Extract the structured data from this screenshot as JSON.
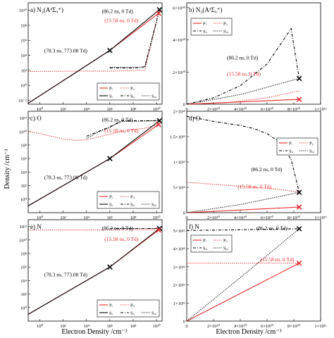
{
  "figure": {
    "ylabel": "Density /cm⁻³",
    "xlabel": "Electron Density /cm⁻³",
    "colors": {
      "red": "#e8292b",
      "black": "#000000"
    }
  },
  "chart_data": [
    {
      "panel": "a) N₂(A³Σᵤ⁺)",
      "type": "line",
      "xscale": "log",
      "yscale": "log",
      "xlim": [
        0.1,
        30000000000.0
      ],
      "ylim": [
        0.003,
        100000000000.0
      ],
      "xticks": [
        "10⁰",
        "10²",
        "10⁴",
        "10⁶",
        "10⁸",
        "10¹⁰"
      ],
      "yticks": [
        "10⁻²",
        "10⁰",
        "10²",
        "10⁴",
        "10⁶",
        "10⁸",
        "10¹⁰"
      ],
      "series": [
        {
          "name": "Pᵢ",
          "color": "#e8292b",
          "dash": "solid",
          "x": [
            0.1,
            1000000.0,
            15000000000.0
          ],
          "y": [
            0.004,
            45000.0,
            4000000000.0
          ]
        },
        {
          "name": "Pᵢᵢ",
          "color": "#e8292b",
          "dash": "dotted",
          "x": [
            0.1,
            10000.0,
            1000000.0,
            1000000000.0,
            15000000000.0
          ],
          "y": [
            70,
            80,
            80,
            100,
            4000000000.0
          ]
        },
        {
          "name": "Sᵢ",
          "color": "#000000",
          "dash": "solid",
          "x": [
            0.1,
            1000000.0,
            18000000000.0
          ],
          "y": [
            0.004,
            45000.0,
            12000000000.0
          ]
        },
        {
          "name": "Sᵢᵢ",
          "color": "#000000",
          "dash": "dashdot",
          "x": [
            1000000.0,
            100000000.0,
            1000000000.0,
            18000000000.0
          ],
          "y": [
            200,
            200,
            300,
            12000000000.0
          ]
        },
        {
          "name": "Sᵢᵢᵢ",
          "color": "#000000",
          "dash": "dotted",
          "x": [
            1000000.0,
            1000000000.0,
            18000000000.0
          ],
          "y": [
            250,
            250,
            12000000000.0
          ]
        }
      ],
      "markers": [
        {
          "x": 1000000.0,
          "y": 45000.0,
          "color": "#000000"
        },
        {
          "x": 18000000000.0,
          "y": 12000000000.0,
          "color": "#000000"
        },
        {
          "x": 15000000000.0,
          "y": 4000000000.0,
          "color": "#e8292b"
        }
      ],
      "annotations": [
        {
          "text": "(86.2 ns, 0 Td)",
          "color": "#000000"
        },
        {
          "text": "(15.58 ns, 0 Td)",
          "color": "#e8292b"
        },
        {
          "text": "(78.3 ns, 773.08 Td)",
          "color": "#000000"
        }
      ],
      "legend": "bottom-right"
    },
    {
      "panel": "b) N₂(A³Σᵤ⁺)",
      "type": "line",
      "xscale": "linear",
      "yscale": "linear",
      "xlim": [
        0,
        100000000000.0
      ],
      "ylim": [
        0,
        63000000000.0
      ],
      "xticks": [
        "0",
        "2×10¹⁰",
        "4×10¹⁰",
        "6×10¹⁰",
        "8×10¹⁰",
        "1×10¹¹"
      ],
      "yticks": [
        "0",
        "2×10¹⁰",
        "4×10¹⁰",
        "6×10¹⁰"
      ],
      "series": [
        {
          "name": "Pᵢ",
          "color": "#e8292b",
          "dash": "solid",
          "x": [
            0,
            84000000000.0
          ],
          "y": [
            0,
            3000000000.0
          ]
        },
        {
          "name": "Pᵢᵢ",
          "color": "#e8292b",
          "dash": "dotted",
          "x": [
            0,
            30000000000.0,
            60000000000.0,
            82000000000.0,
            84000000000.0
          ],
          "y": [
            0,
            1000000000.0,
            4000000000.0,
            8000000000.0,
            8000000000.0
          ]
        },
        {
          "name": "Sᵢᵢ",
          "color": "#000000",
          "dash": "dashdot",
          "x": [
            0,
            20000000000.0,
            40000000000.0,
            60000000000.0,
            78000000000.0,
            84000000000.0
          ],
          "y": [
            0,
            4000000000.0,
            11500000000.0,
            25000000000.0,
            47000000000.0,
            16000000000.0
          ]
        },
        {
          "name": "Sᵢᵢᵢ",
          "color": "#000000",
          "dash": "dotted",
          "x": [
            0,
            40000000000.0,
            84000000000.0
          ],
          "y": [
            0,
            6000000000.0,
            16000000000.0
          ]
        }
      ],
      "markers": [
        {
          "x": 84000000000.0,
          "y": 16000000000.0,
          "color": "#000000"
        },
        {
          "x": 84000000000.0,
          "y": 3000000000.0,
          "color": "#e8292b"
        }
      ],
      "annotations": [
        {
          "text": "(86.2 ns, 0 Td)",
          "color": "#000000"
        },
        {
          "text": "(15.58 ns, 0 Td)",
          "color": "#e8292b"
        }
      ],
      "legend": "top-left"
    },
    {
      "panel": "c) O",
      "type": "line",
      "xscale": "log",
      "yscale": "log",
      "xlim": [
        0.1,
        30000000000.0
      ],
      "ylim": [
        0.01,
        10000000000000.0
      ],
      "xticks": [
        "10⁰",
        "10²",
        "10⁴",
        "10⁶",
        "10⁸",
        "10¹⁰"
      ],
      "yticks": [
        "10⁰",
        "10²",
        "10⁴",
        "10⁶",
        "10⁸",
        "10¹⁰",
        "10¹²"
      ],
      "series": [
        {
          "name": "Pᵢ",
          "color": "#e8292b",
          "dash": "solid",
          "x": [
            0.1,
            1000000.0,
            15000000000.0
          ],
          "y": [
            0.1,
            1000000.0,
            110000000000.0
          ]
        },
        {
          "name": "Pᵢᵢ",
          "color": "#e8292b",
          "dash": "dotted",
          "x": [
            0.1,
            1,
            10,
            100,
            1000.0,
            10000.0,
            100000.0,
            1000000.0,
            10000000.0,
            100000000.0,
            1000000000.0,
            15000000000.0
          ],
          "y": [
            10000000000.0,
            5000000000.0,
            2000000000.0,
            800000000.0,
            500000000.0,
            600000000.0,
            1500000000.0,
            4000000000.0,
            10000000000.0,
            20000000000.0,
            30000000000.0,
            110000000000.0
          ]
        },
        {
          "name": "Sᵢ",
          "color": "#000000",
          "dash": "solid",
          "x": [
            0.1,
            1000000.0,
            18000000000.0
          ],
          "y": [
            0.1,
            1000000.0,
            400000000000.0
          ]
        },
        {
          "name": "Sᵢᵢ",
          "color": "#000000",
          "dash": "dashdot",
          "x": [
            10000.0,
            100000.0,
            1000000.0,
            10000000.0,
            18000000000.0
          ],
          "y": [
            2000000000.0,
            10000000000.0,
            50000000000.0,
            400000000000.0,
            400000000000.0
          ]
        },
        {
          "name": "Sᵢᵢᵢ",
          "color": "#000000",
          "dash": "dotted",
          "x": [
            10000.0,
            100000.0,
            1000000.0,
            10000000.0,
            18000000000.0
          ],
          "y": [
            1000000000.0,
            8000000000.0,
            40000000000.0,
            300000000000.0,
            400000000000.0
          ]
        }
      ],
      "markers": [
        {
          "x": 1000000.0,
          "y": 1000000.0,
          "color": "#000000"
        },
        {
          "x": 18000000000.0,
          "y": 400000000000.0,
          "color": "#000000"
        },
        {
          "x": 15000000000.0,
          "y": 110000000000.0,
          "color": "#e8292b"
        }
      ],
      "annotations": [
        {
          "text": "(86.2 ns, 0 Td)",
          "color": "#000000"
        },
        {
          "text": "(15.58 ns, 0 Td)",
          "color": "#e8292b"
        },
        {
          "text": "(78.3 ns, 773.08 Td)",
          "color": "#000000"
        }
      ],
      "legend": "bottom-right"
    },
    {
      "panel": "d) O",
      "type": "line",
      "xscale": "linear",
      "yscale": "linear",
      "xlim": [
        0,
        100000000000.0
      ],
      "ylim": [
        0,
        2000000000000.0
      ],
      "xticks": [
        "0",
        "2×10¹⁰",
        "4×10¹⁰",
        "6×10¹⁰",
        "8×10¹⁰",
        "1×10¹¹"
      ],
      "yticks": [
        "0",
        "5×10¹¹",
        "1×10¹²",
        "1.5×10¹²",
        "2×10¹²"
      ],
      "series": [
        {
          "name": "Pᵢ",
          "color": "#e8292b",
          "dash": "solid",
          "x": [
            0,
            84000000000.0
          ],
          "y": [
            0,
            110000000000.0
          ]
        },
        {
          "name": "Pᵢᵢ",
          "color": "#e8292b",
          "dash": "dotted",
          "x": [
            0,
            20000000000.0,
            40000000000.0,
            60000000000.0,
            75000000000.0,
            84000000000.0
          ],
          "y": [
            600000000000.0,
            560000000000.0,
            520000000000.0,
            480000000000.0,
            440000000000.0,
            400000000000.0
          ]
        },
        {
          "name": "Sᵢᵢ",
          "color": "#000000",
          "dash": "dashdot",
          "x": [
            0,
            20000000000.0,
            40000000000.0,
            50000000000.0,
            60000000000.0,
            70000000000.0,
            78000000000.0,
            84000000000.0
          ],
          "y": [
            1900000000000.0,
            1800000000000.0,
            1720000000000.0,
            1660000000000.0,
            1560000000000.0,
            1380000000000.0,
            1050000000000.0,
            400000000000.0
          ]
        },
        {
          "name": "Sᵢᵢᵢ",
          "color": "#000000",
          "dash": "dotted",
          "x": [
            0,
            40000000000.0,
            84000000000.0
          ],
          "y": [
            0,
            160000000000.0,
            400000000000.0
          ]
        }
      ],
      "markers": [
        {
          "x": 84000000000.0,
          "y": 400000000000.0,
          "color": "#000000"
        },
        {
          "x": 84000000000.0,
          "y": 110000000000.0,
          "color": "#e8292b"
        }
      ],
      "annotations": [
        {
          "text": "(86.2 ns, 0 Td)",
          "color": "#000000"
        },
        {
          "text": "(15.58 ns, 0 Td)",
          "color": "#e8292b"
        }
      ],
      "legend": "top-right"
    },
    {
      "panel": "e) N",
      "type": "line",
      "xscale": "log",
      "yscale": "log",
      "xlim": [
        0.1,
        30000000000.0
      ],
      "ylim": [
        0.01,
        10000000000000.0
      ],
      "xticks": [
        "10⁰",
        "10²",
        "10⁴",
        "10⁶",
        "10⁸",
        "10¹⁰"
      ],
      "yticks": [
        "10⁰",
        "10²",
        "10⁴",
        "10⁶",
        "10⁸",
        "10¹⁰",
        "10¹²"
      ],
      "series": [
        {
          "name": "Pᵢ",
          "color": "#e8292b",
          "dash": "solid",
          "x": [
            0.1,
            1000000.0,
            15000000000.0
          ],
          "y": [
            0.1,
            1000000.0,
            300000000000.0
          ]
        },
        {
          "name": "Pᵢᵢ",
          "color": "#e8292b",
          "dash": "dotted",
          "x": [
            0.1,
            10000.0,
            15000000000.0
          ],
          "y": [
            300000000000.0,
            300000000000.0,
            320000000000.0
          ]
        },
        {
          "name": "Sᵢ",
          "color": "#000000",
          "dash": "solid",
          "x": [
            0.1,
            1000000.0,
            18000000000.0
          ],
          "y": [
            0.1,
            1000000.0,
            500000000000.0
          ]
        },
        {
          "name": "Sᵢᵢ",
          "color": "#000000",
          "dash": "dashdot",
          "x": [
            1000000.0,
            18000000000.0
          ],
          "y": [
            500000000000.0,
            500000000000.0
          ]
        },
        {
          "name": "Sᵢᵢᵢ",
          "color": "#000000",
          "dash": "dotted",
          "x": [
            1000000.0,
            18000000000.0
          ],
          "y": [
            500000000000.0,
            500000000000.0
          ]
        }
      ],
      "markers": [
        {
          "x": 1000000.0,
          "y": 1000000.0,
          "color": "#000000"
        },
        {
          "x": 18000000000.0,
          "y": 500000000000.0,
          "color": "#000000"
        },
        {
          "x": 15000000000.0,
          "y": 300000000000.0,
          "color": "#e8292b"
        }
      ],
      "annotations": [
        {
          "text": "(86.2 ns, 0 Td)",
          "color": "#000000"
        },
        {
          "text": "(15.58 ns, 0 Td)",
          "color": "#e8292b"
        },
        {
          "text": "(78.3 ns, 773.08 Td)",
          "color": "#000000"
        }
      ],
      "legend": "bottom-right"
    },
    {
      "panel": "f) N",
      "type": "line",
      "xscale": "linear",
      "yscale": "linear",
      "xlim": [
        0,
        100000000000.0
      ],
      "ylim": [
        0,
        560000000000.0
      ],
      "xticks": [
        "0",
        "2×10¹⁰",
        "4×10¹⁰",
        "6×10¹⁰",
        "8×10¹⁰",
        "1×10¹¹"
      ],
      "yticks": [
        "0",
        "1×10¹¹",
        "2×10¹¹",
        "3×10¹¹",
        "4×10¹¹",
        "5×10¹¹"
      ],
      "series": [
        {
          "name": "Pᵢ",
          "color": "#e8292b",
          "dash": "solid",
          "x": [
            0,
            84000000000.0
          ],
          "y": [
            0,
            320000000000.0
          ]
        },
        {
          "name": "Pᵢᵢ",
          "color": "#e8292b",
          "dash": "dotted",
          "x": [
            0,
            84000000000.0
          ],
          "y": [
            320000000000.0,
            320000000000.0
          ]
        },
        {
          "name": "Sᵢᵢ",
          "color": "#000000",
          "dash": "dashdot",
          "x": [
            0,
            84000000000.0
          ],
          "y": [
            500000000000.0,
            510000000000.0
          ]
        },
        {
          "name": "Sᵢᵢᵢ",
          "color": "#000000",
          "dash": "dotted",
          "x": [
            0,
            40000000000.0,
            84000000000.0
          ],
          "y": [
            0,
            240000000000.0,
            510000000000.0
          ]
        }
      ],
      "markers": [
        {
          "x": 84000000000.0,
          "y": 510000000000.0,
          "color": "#000000"
        },
        {
          "x": 84000000000.0,
          "y": 320000000000.0,
          "color": "#e8292b"
        }
      ],
      "annotations": [
        {
          "text": "(86.2 ns, 0 Td)",
          "color": "#000000"
        },
        {
          "text": "(15.58 ns, 0 Td)",
          "color": "#e8292b"
        }
      ],
      "legend": "top-left"
    }
  ]
}
